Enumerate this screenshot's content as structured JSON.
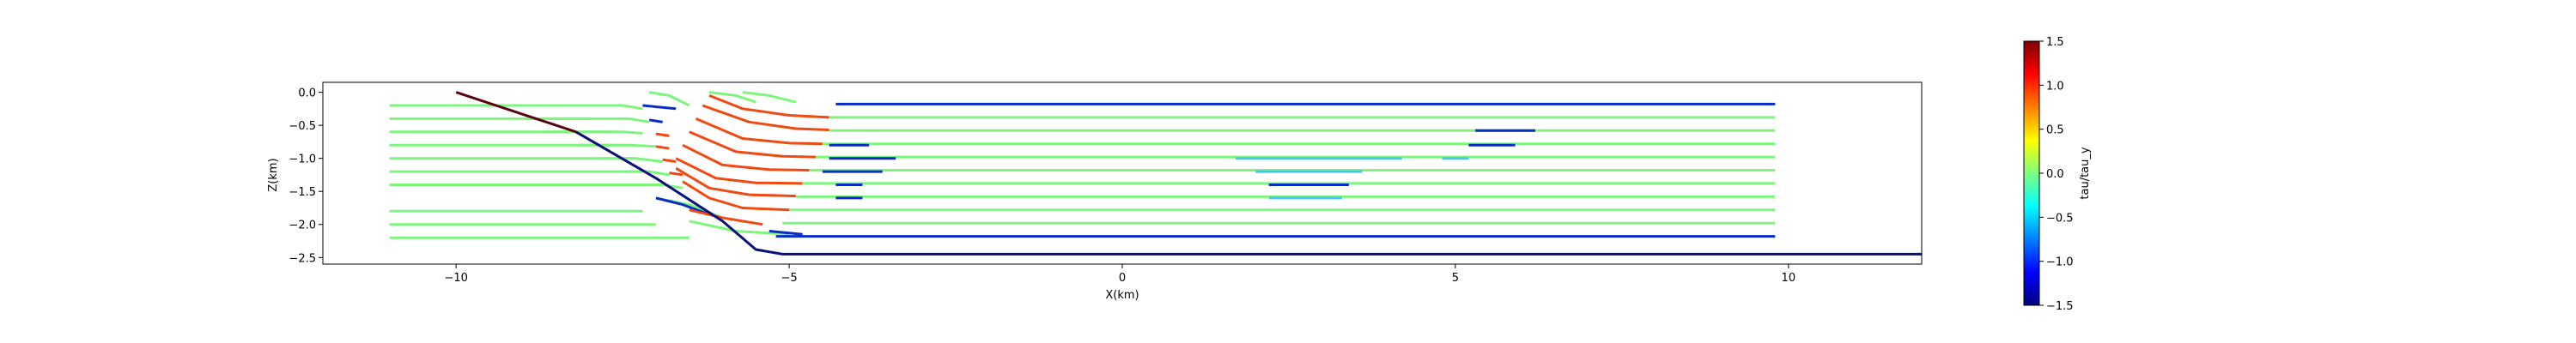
{
  "chart_data": [
    {
      "type": "line",
      "xlabel": "X(km)",
      "ylabel": "Z(km)",
      "xlim": [
        -12,
        12
      ],
      "ylim": [
        -2.6,
        0.15
      ],
      "xticks": [
        -10,
        -5,
        0,
        5,
        10
      ],
      "yticks": [
        0.0,
        -0.5,
        -1.0,
        -1.5,
        -2.0,
        -2.5
      ],
      "xtick_labels": [
        "−10",
        "−5",
        "0",
        "5",
        "10"
      ],
      "ytick_labels": [
        "0.0",
        "−0.5",
        "−1.0",
        "−1.5",
        "−2.0",
        "−2.5"
      ],
      "grid": false,
      "colors": {
        "green": "#7ef57c",
        "red": "#f04a12",
        "blue": "#0a2bc8",
        "navy": "#0a0f7a",
        "dark_red": "#5a0010",
        "cyan": "#45c8ef"
      },
      "boundaries": [
        {
          "name": "slope",
          "color": "dark_red",
          "x": [
            -10.0,
            -9.4,
            -8.8,
            -8.2
          ],
          "y": [
            0.0,
            -0.2,
            -0.4,
            -0.6
          ]
        },
        {
          "name": "floor",
          "color": "navy",
          "x": [
            -8.2,
            -7.0,
            -6.0,
            -5.5,
            -5.1,
            12.0
          ],
          "y": [
            -0.6,
            -1.3,
            -1.95,
            -2.38,
            -2.45,
            -2.45
          ]
        }
      ],
      "streamlines": [
        {
          "color": "green",
          "x": [
            -11.0,
            -8.5
          ],
          "y": [
            -0.2,
            -0.2
          ]
        },
        {
          "color": "green",
          "x": [
            -11.0,
            -8.0
          ],
          "y": [
            -0.4,
            -0.4
          ]
        },
        {
          "color": "green",
          "x": [
            -11.0,
            -7.7
          ],
          "y": [
            -0.6,
            -0.6
          ]
        },
        {
          "color": "green",
          "x": [
            -11.0,
            -7.5
          ],
          "y": [
            -0.8,
            -0.8
          ]
        },
        {
          "color": "green",
          "x": [
            -11.0,
            -7.3
          ],
          "y": [
            -1.0,
            -1.0
          ]
        },
        {
          "color": "green",
          "x": [
            -11.0,
            -7.2
          ],
          "y": [
            -1.2,
            -1.2
          ]
        },
        {
          "color": "green",
          "x": [
            -11.0,
            -7.1
          ],
          "y": [
            -1.4,
            -1.4
          ]
        },
        {
          "color": "green",
          "x": [
            -11.0,
            -7.2
          ],
          "y": [
            -1.8,
            -1.8
          ]
        },
        {
          "color": "green",
          "x": [
            -11.0,
            -7.0
          ],
          "y": [
            -2.0,
            -2.0
          ]
        },
        {
          "color": "green",
          "x": [
            -11.0,
            -6.5
          ],
          "y": [
            -2.2,
            -2.2
          ]
        },
        {
          "color": "green",
          "x": [
            -9.5,
            -7.5,
            -7.2
          ],
          "y": [
            -0.2,
            -0.2,
            -0.25
          ]
        },
        {
          "color": "green",
          "x": [
            -9.0,
            -7.4,
            -7.1
          ],
          "y": [
            -0.4,
            -0.4,
            -0.45
          ]
        },
        {
          "color": "green",
          "x": [
            -8.7,
            -7.5,
            -7.2
          ],
          "y": [
            -0.6,
            -0.6,
            -0.62
          ]
        },
        {
          "color": "green",
          "x": [
            -8.2,
            -7.4,
            -7.0
          ],
          "y": [
            -0.8,
            -0.8,
            -0.82
          ]
        },
        {
          "color": "green",
          "x": [
            -7.9,
            -7.3,
            -6.9
          ],
          "y": [
            -1.0,
            -1.0,
            -1.05
          ]
        },
        {
          "color": "green",
          "x": [
            -7.6,
            -7.1,
            -6.8
          ],
          "y": [
            -1.2,
            -1.2,
            -1.25
          ]
        },
        {
          "color": "green",
          "x": [
            -7.2,
            -6.9,
            -6.6
          ],
          "y": [
            -1.4,
            -1.4,
            -1.45
          ]
        },
        {
          "color": "green",
          "x": [
            -7.0,
            -6.5,
            -6.0
          ],
          "y": [
            -1.6,
            -1.7,
            -1.9
          ]
        },
        {
          "color": "green",
          "x": [
            -6.5,
            -5.8,
            -5.0
          ],
          "y": [
            -1.95,
            -2.1,
            -2.15
          ]
        },
        {
          "color": "blue",
          "x": [
            -7.2,
            -6.7
          ],
          "y": [
            -0.2,
            -0.25
          ]
        },
        {
          "color": "blue",
          "x": [
            -7.1,
            -6.9
          ],
          "y": [
            -0.42,
            -0.45
          ]
        },
        {
          "color": "red",
          "x": [
            -7.0,
            -6.8
          ],
          "y": [
            -0.63,
            -0.66
          ]
        },
        {
          "color": "red",
          "x": [
            -7.0,
            -6.8
          ],
          "y": [
            -0.82,
            -0.85
          ]
        },
        {
          "color": "red",
          "x": [
            -6.9,
            -6.7
          ],
          "y": [
            -1.02,
            -1.05
          ]
        },
        {
          "color": "red",
          "x": [
            -6.8,
            -6.6
          ],
          "y": [
            -1.22,
            -1.25
          ]
        },
        {
          "color": "blue",
          "x": [
            -7.0,
            -6.6,
            -6.2
          ],
          "y": [
            -1.6,
            -1.7,
            -1.85
          ]
        },
        {
          "color": "red",
          "x": [
            -6.5,
            -6.0,
            -5.4
          ],
          "y": [
            -1.78,
            -1.9,
            -2.0
          ]
        },
        {
          "color": "blue",
          "x": [
            -5.3,
            -4.8
          ],
          "y": [
            -2.1,
            -2.15
          ]
        },
        {
          "color": "green",
          "x": [
            -7.1,
            -6.8,
            -6.5
          ],
          "y": [
            0.0,
            -0.05,
            -0.2
          ]
        },
        {
          "color": "green",
          "x": [
            -6.2,
            -5.8,
            -5.5
          ],
          "y": [
            0.0,
            -0.05,
            -0.15
          ]
        },
        {
          "color": "green",
          "x": [
            -5.7,
            -5.3,
            -4.9
          ],
          "y": [
            0.0,
            -0.05,
            -0.15
          ]
        },
        {
          "color": "red",
          "x": [
            -6.2,
            -5.7,
            -5.0,
            -4.4
          ],
          "y": [
            -0.05,
            -0.25,
            -0.35,
            -0.38
          ]
        },
        {
          "color": "red",
          "x": [
            -6.3,
            -5.6,
            -4.9,
            -4.4
          ],
          "y": [
            -0.2,
            -0.45,
            -0.55,
            -0.57
          ]
        },
        {
          "color": "red",
          "x": [
            -6.4,
            -5.7,
            -5.0,
            -4.5
          ],
          "y": [
            -0.4,
            -0.7,
            -0.77,
            -0.78
          ]
        },
        {
          "color": "red",
          "x": [
            -6.5,
            -5.8,
            -5.1,
            -4.6
          ],
          "y": [
            -0.6,
            -0.9,
            -0.97,
            -0.98
          ]
        },
        {
          "color": "red",
          "x": [
            -6.6,
            -6.0,
            -5.3,
            -4.7
          ],
          "y": [
            -0.8,
            -1.1,
            -1.17,
            -1.18
          ]
        },
        {
          "color": "red",
          "x": [
            -6.7,
            -6.1,
            -5.5,
            -4.8
          ],
          "y": [
            -1.0,
            -1.3,
            -1.37,
            -1.38
          ]
        },
        {
          "color": "red",
          "x": [
            -6.7,
            -6.2,
            -5.6,
            -4.9
          ],
          "y": [
            -1.15,
            -1.45,
            -1.55,
            -1.57
          ]
        },
        {
          "color": "red",
          "x": [
            -6.6,
            -6.2,
            -5.7,
            -5.0
          ],
          "y": [
            -1.35,
            -1.6,
            -1.75,
            -1.78
          ]
        },
        {
          "color": "blue",
          "x": [
            -4.3,
            9.8
          ],
          "y": [
            -0.18,
            -0.18
          ]
        },
        {
          "color": "green",
          "x": [
            -4.4,
            9.8
          ],
          "y": [
            -0.38,
            -0.38
          ]
        },
        {
          "color": "green",
          "x": [
            -4.4,
            9.8
          ],
          "y": [
            -0.58,
            -0.58
          ]
        },
        {
          "color": "green",
          "x": [
            -4.5,
            9.8
          ],
          "y": [
            -0.78,
            -0.78
          ]
        },
        {
          "color": "green",
          "x": [
            -4.6,
            9.8
          ],
          "y": [
            -0.98,
            -0.98
          ]
        },
        {
          "color": "green",
          "x": [
            -4.7,
            9.8
          ],
          "y": [
            -1.18,
            -1.18
          ]
        },
        {
          "color": "green",
          "x": [
            -4.8,
            9.8
          ],
          "y": [
            -1.38,
            -1.38
          ]
        },
        {
          "color": "green",
          "x": [
            -4.9,
            9.8
          ],
          "y": [
            -1.58,
            -1.58
          ]
        },
        {
          "color": "green",
          "x": [
            -5.0,
            9.8
          ],
          "y": [
            -1.78,
            -1.78
          ]
        },
        {
          "color": "green",
          "x": [
            -5.1,
            9.8
          ],
          "y": [
            -1.98,
            -1.98
          ]
        },
        {
          "color": "blue",
          "x": [
            -5.2,
            9.8
          ],
          "y": [
            -2.18,
            -2.18
          ]
        },
        {
          "color": "blue",
          "x": [
            -4.4,
            -3.8
          ],
          "y": [
            -0.8,
            -0.8
          ]
        },
        {
          "color": "blue",
          "x": [
            -4.4,
            -3.4
          ],
          "y": [
            -1.0,
            -1.0
          ]
        },
        {
          "color": "blue",
          "x": [
            -4.5,
            -3.6
          ],
          "y": [
            -1.2,
            -1.2
          ]
        },
        {
          "color": "blue",
          "x": [
            -4.3,
            -3.9
          ],
          "y": [
            -1.4,
            -1.4
          ]
        },
        {
          "color": "blue",
          "x": [
            -4.3,
            -3.9
          ],
          "y": [
            -1.6,
            -1.6
          ]
        },
        {
          "color": "cyan",
          "x": [
            1.7,
            4.2
          ],
          "y": [
            -1.0,
            -1.0
          ]
        },
        {
          "color": "cyan",
          "x": [
            2.0,
            3.6
          ],
          "y": [
            -1.2,
            -1.2
          ]
        },
        {
          "color": "blue",
          "x": [
            2.2,
            3.4
          ],
          "y": [
            -1.4,
            -1.4
          ]
        },
        {
          "color": "cyan",
          "x": [
            2.2,
            3.3
          ],
          "y": [
            -1.6,
            -1.6
          ]
        },
        {
          "color": "blue",
          "x": [
            5.3,
            6.2
          ],
          "y": [
            -0.58,
            -0.58
          ]
        },
        {
          "color": "blue",
          "x": [
            5.2,
            5.9
          ],
          "y": [
            -0.8,
            -0.8
          ]
        },
        {
          "color": "cyan",
          "x": [
            4.8,
            5.2
          ],
          "y": [
            -1.0,
            -1.0
          ]
        }
      ]
    },
    {
      "type": "heatmap",
      "colorbar_label": "tau/tau_y",
      "colormap": "jet",
      "range": [
        -1.5,
        1.5
      ],
      "ticks": [
        1.5,
        1.0,
        0.5,
        0.0,
        -0.5,
        -1.0,
        -1.5
      ],
      "tick_labels": [
        "1.5",
        "1.0",
        "0.5",
        "0.0",
        "−0.5",
        "−1.0",
        "−1.5"
      ]
    }
  ]
}
